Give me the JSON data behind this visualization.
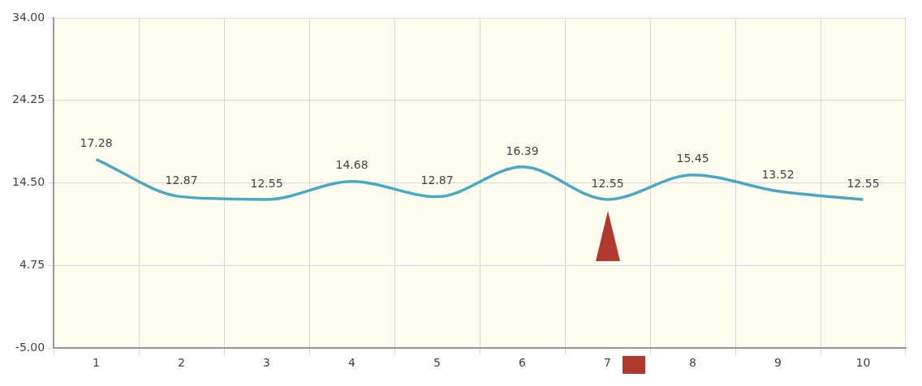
{
  "chart_data": {
    "type": "line",
    "categories": [
      "1",
      "2",
      "3",
      "4",
      "5",
      "6",
      "7",
      "8",
      "9",
      "10"
    ],
    "series": [
      {
        "color": "#4aa8c0",
        "values": [
          17.28,
          12.87,
          12.55,
          14.68,
          12.87,
          16.39,
          12.55,
          15.45,
          13.52,
          12.55
        ]
      }
    ],
    "ylim": [
      -5,
      34
    ],
    "yticks": [
      {
        "value": -5,
        "label": "-5.00"
      },
      {
        "value": 4.75,
        "label": "4.75"
      },
      {
        "value": 14.5,
        "label": "14.50"
      },
      {
        "value": 24.25,
        "label": "24.25"
      },
      {
        "value": 34,
        "label": "34.00"
      }
    ],
    "grid": true,
    "legend": false,
    "marker": "none",
    "data_labels": true
  }
}
